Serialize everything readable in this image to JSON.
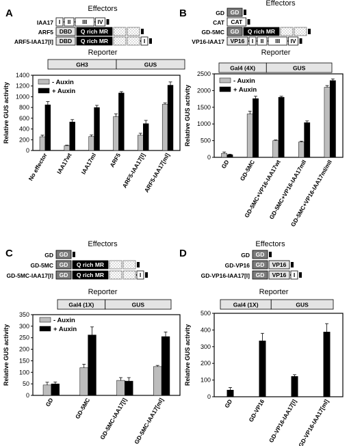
{
  "colors": {
    "minus_auxin": "#bdbdbd",
    "plus_auxin": "#000000",
    "gd_box": "#7a7a7a",
    "reporter_box": "#e4e4e4",
    "dotted_box": "#eeeeee"
  },
  "panels": [
    {
      "letter": "A",
      "effectors_title": "Effectors",
      "reporter_title": "Reporter",
      "reporter_parts": [
        "GH3",
        "GUS"
      ],
      "constructs": [
        {
          "label": "IAA17",
          "segments": [
            {
              "type": "white",
              "text": "I"
            },
            {
              "type": "white",
              "text": "II"
            },
            {
              "type": "white",
              "text": "III"
            },
            {
              "type": "white",
              "text": "IV"
            }
          ]
        },
        {
          "label": "ARF5",
          "segments": [
            {
              "type": "gray",
              "text": "DBD"
            },
            {
              "type": "black",
              "text": "Q rich MR"
            },
            {
              "type": "dotted",
              "text": ""
            },
            {
              "type": "dotted",
              "text": ""
            }
          ]
        },
        {
          "label": "ARF5-IAA17[I]",
          "segments": [
            {
              "type": "gray",
              "text": "DBD"
            },
            {
              "type": "black",
              "text": "Q rich MR"
            },
            {
              "type": "dotted",
              "text": ""
            },
            {
              "type": "dotted",
              "text": ""
            },
            {
              "type": "white",
              "text": "I"
            }
          ]
        }
      ]
    },
    {
      "letter": "B",
      "effectors_title": "Effectors",
      "reporter_title": "Reporter",
      "reporter_parts": [
        "Gal4 (4X)",
        "GUS"
      ],
      "constructs": [
        {
          "label": "GD",
          "segments": [
            {
              "type": "gd",
              "text": "GD"
            }
          ]
        },
        {
          "label": "CAT",
          "segments": [
            {
              "type": "white",
              "text": "CAT"
            }
          ]
        },
        {
          "label": "GD-5MC",
          "segments": [
            {
              "type": "gd",
              "text": "GD"
            },
            {
              "type": "black",
              "text": "Q rich MR"
            },
            {
              "type": "dotted",
              "text": ""
            },
            {
              "type": "dotted",
              "text": ""
            }
          ]
        },
        {
          "label": "VP16-IAA17",
          "segments": [
            {
              "type": "gray",
              "text": "VP16"
            },
            {
              "type": "white",
              "text": "I"
            },
            {
              "type": "white",
              "text": "II"
            },
            {
              "type": "white",
              "text": "III"
            },
            {
              "type": "white",
              "text": "IV"
            }
          ]
        }
      ]
    },
    {
      "letter": "C",
      "effectors_title": "Effectors",
      "reporter_title": "Reporter",
      "reporter_parts": [
        "Gal4 (1X)",
        "GUS"
      ],
      "constructs": [
        {
          "label": "GD",
          "segments": [
            {
              "type": "gd",
              "text": "GD"
            }
          ]
        },
        {
          "label": "GD-5MC",
          "segments": [
            {
              "type": "gd",
              "text": "GD"
            },
            {
              "type": "black",
              "text": "Q rich MR"
            },
            {
              "type": "dotted",
              "text": ""
            },
            {
              "type": "dotted",
              "text": ""
            }
          ]
        },
        {
          "label": "GD-5MC-IAA17[I]",
          "segments": [
            {
              "type": "gd",
              "text": "GD"
            },
            {
              "type": "black",
              "text": "Q rich MR"
            },
            {
              "type": "dotted",
              "text": ""
            },
            {
              "type": "dotted",
              "text": ""
            },
            {
              "type": "white",
              "text": "I"
            }
          ]
        }
      ]
    },
    {
      "letter": "D",
      "effectors_title": "Effectors",
      "reporter_title": "Reporter",
      "reporter_parts": [
        "Gal4 (1X)",
        "GUS"
      ],
      "constructs": [
        {
          "label": "GD",
          "segments": [
            {
              "type": "gd",
              "text": "GD"
            }
          ]
        },
        {
          "label": "GD-VP16",
          "segments": [
            {
              "type": "gd",
              "text": "GD"
            },
            {
              "type": "gray",
              "text": "VP16"
            }
          ]
        },
        {
          "label": "GD-VP16-IAA17[I]",
          "segments": [
            {
              "type": "gd",
              "text": "GD"
            },
            {
              "type": "gray",
              "text": "VP16"
            },
            {
              "type": "white",
              "text": "I"
            }
          ]
        }
      ]
    }
  ],
  "chart_data": [
    {
      "panel": "A",
      "type": "bar",
      "ylabel": "Relative GUS activity",
      "ylim": [
        0,
        1400
      ],
      "yticks": [
        0,
        200,
        400,
        600,
        800,
        1000,
        1200,
        1400
      ],
      "legend": "top-left",
      "categories": [
        "No effector",
        "IAA17wt",
        "IAA17ml",
        "ARF5",
        "ARF5-IAA17[I]",
        "ARF5-IAA17[ml]"
      ],
      "series": [
        {
          "name": "- Auxin",
          "color": "#bdbdbd",
          "values": [
            255,
            90,
            260,
            630,
            285,
            860
          ],
          "errors": [
            30,
            10,
            30,
            50,
            35,
            25
          ]
        },
        {
          "name": "+ Auxin",
          "color": "#000000",
          "values": [
            850,
            530,
            800,
            1070,
            500,
            1215
          ],
          "errors": [
            60,
            45,
            40,
            25,
            60,
            60
          ]
        }
      ]
    },
    {
      "panel": "B",
      "type": "bar",
      "ylabel": "Relative GUS activity",
      "ylim": [
        0,
        2500
      ],
      "yticks": [
        0,
        500,
        1000,
        1500,
        2000,
        2500
      ],
      "legend": "top-left",
      "categories": [
        "GD",
        "GD-5MC",
        "GD-5MC+VP16-IAA17wt",
        "GD-5MC+VP16-IAA17mII",
        "GD-5MC+VP16-IAA17mI/mII"
      ],
      "series": [
        {
          "name": "- Auxin",
          "color": "#bdbdbd",
          "values": [
            120,
            1300,
            500,
            460,
            2100
          ],
          "errors": [
            40,
            80,
            20,
            25,
            50
          ]
        },
        {
          "name": "+ Auxin",
          "color": "#000000",
          "values": [
            80,
            1760,
            1800,
            1040,
            2300
          ],
          "errors": [
            15,
            70,
            30,
            50,
            50
          ]
        }
      ]
    },
    {
      "panel": "C",
      "type": "bar",
      "ylabel": "Relative GUS activity",
      "ylim": [
        0,
        350
      ],
      "yticks": [
        0,
        50,
        100,
        150,
        200,
        250,
        300,
        350
      ],
      "legend": "top-left",
      "categories": [
        "GD",
        "GD-5MC",
        "GD-5MC-IAA17[I]",
        "GD-5MC-IAA17[ml]"
      ],
      "series": [
        {
          "name": "- Auxin",
          "color": "#bdbdbd",
          "values": [
            45,
            120,
            65,
            125
          ],
          "errors": [
            12,
            15,
            12,
            5
          ]
        },
        {
          "name": "+ Auxin",
          "color": "#000000",
          "values": [
            50,
            262,
            62,
            255
          ],
          "errors": [
            8,
            35,
            15,
            20
          ]
        }
      ]
    },
    {
      "panel": "D",
      "type": "bar",
      "ylabel": "Relative GUS activity",
      "ylim": [
        0,
        500
      ],
      "yticks": [
        0,
        100,
        200,
        300,
        400,
        500
      ],
      "categories": [
        "GD",
        "GD-VP16",
        "GD-VP16-IAA17[I]",
        "GD-VP16-IAA17[ml]"
      ],
      "series": [
        {
          "name": "",
          "color": "#000000",
          "values": [
            40,
            335,
            122,
            388
          ],
          "errors": [
            15,
            45,
            10,
            50
          ]
        }
      ]
    }
  ]
}
